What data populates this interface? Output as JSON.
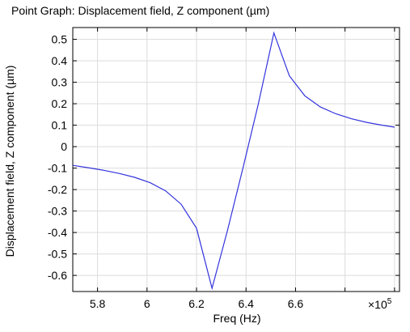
{
  "chart_data": {
    "type": "line",
    "title": "Point Graph: Displacement field, Z component (µm)",
    "xlabel": "Freq (Hz)",
    "ylabel": "Displacement field, Z component (µm)",
    "x_multiplier_label": "×10",
    "x_multiplier_exponent": "5",
    "xlim": [
      570000,
      702000
    ],
    "ylim": [
      -0.675,
      0.555
    ],
    "x_ticks": [
      580000,
      600000,
      620000,
      640000,
      660000,
      680000,
      700000
    ],
    "x_tick_labels": [
      "5.8",
      "6",
      "6.2",
      "6.4",
      "6.6",
      "",
      ""
    ],
    "y_ticks": [
      0.5,
      0.4,
      0.3,
      0.2,
      0.1,
      0,
      -0.1,
      -0.2,
      -0.3,
      -0.4,
      -0.5,
      -0.6
    ],
    "y_tick_labels": [
      "0.5",
      "0.4",
      "0.3",
      "0.2",
      "0.1",
      "0",
      "-0.1",
      "-0.2",
      "-0.3",
      "-0.4",
      "-0.5",
      "-0.6"
    ],
    "grid": true,
    "series": [
      {
        "color": "#3333dd",
        "x": [
          570000,
          576250,
          582500,
          588750,
          595000,
          601250,
          607500,
          613750,
          620000,
          626250,
          632500,
          638750,
          645000,
          651250,
          657500,
          663750,
          670000,
          676250,
          682500,
          688750,
          695000,
          700000
        ],
        "y": [
          -0.087,
          -0.098,
          -0.11,
          -0.125,
          -0.143,
          -0.168,
          -0.206,
          -0.268,
          -0.38,
          -0.66,
          -0.39,
          -0.1,
          0.2,
          0.53,
          0.33,
          0.237,
          0.185,
          0.153,
          0.13,
          0.113,
          0.1,
          0.091
        ]
      }
    ]
  }
}
